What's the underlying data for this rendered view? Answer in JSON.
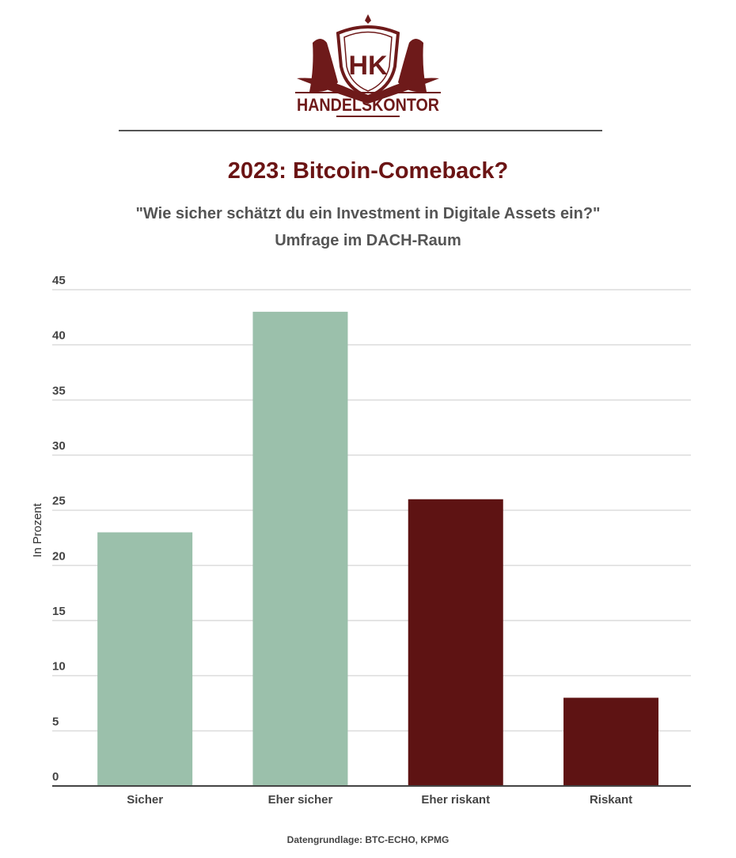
{
  "logo": {
    "monogram": "HK",
    "text": "HANDELSKONTOR",
    "color": "#6e1a1a"
  },
  "header": {
    "title": "2023: Bitcoin-Comeback?",
    "subtitle": "\"Wie sicher schätzt du ein Investment in Digitale Assets ein?\"",
    "subtitle2": "Umfrage im DACH-Raum"
  },
  "footer": {
    "source": "Datengrundlage: BTC-ECHO, KPMG"
  },
  "chart_data": {
    "type": "bar",
    "title": "2023: Bitcoin-Comeback?",
    "categories": [
      "Sicher",
      "Eher sicher",
      "Eher riskant",
      "Riskant"
    ],
    "values": [
      23,
      43,
      26,
      8
    ],
    "colors": [
      "#9bc0ab",
      "#9bc0ab",
      "#5e1313",
      "#5e1313"
    ],
    "xlabel": "",
    "ylabel": "In Prozent",
    "ylim": [
      0,
      45
    ],
    "yticks": [
      0,
      5,
      10,
      15,
      20,
      25,
      30,
      35,
      40,
      45
    ],
    "grid": true
  }
}
